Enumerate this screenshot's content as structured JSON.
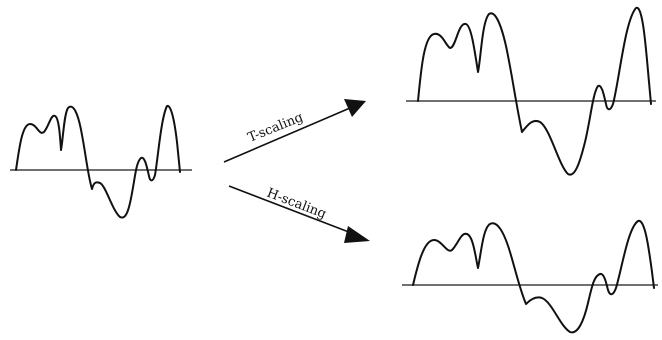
{
  "labels": {
    "t_scaling": "T-scaling",
    "h_scaling": "H-scaling"
  },
  "colors": {
    "ink": "#111111",
    "background": "#ffffff"
  }
}
